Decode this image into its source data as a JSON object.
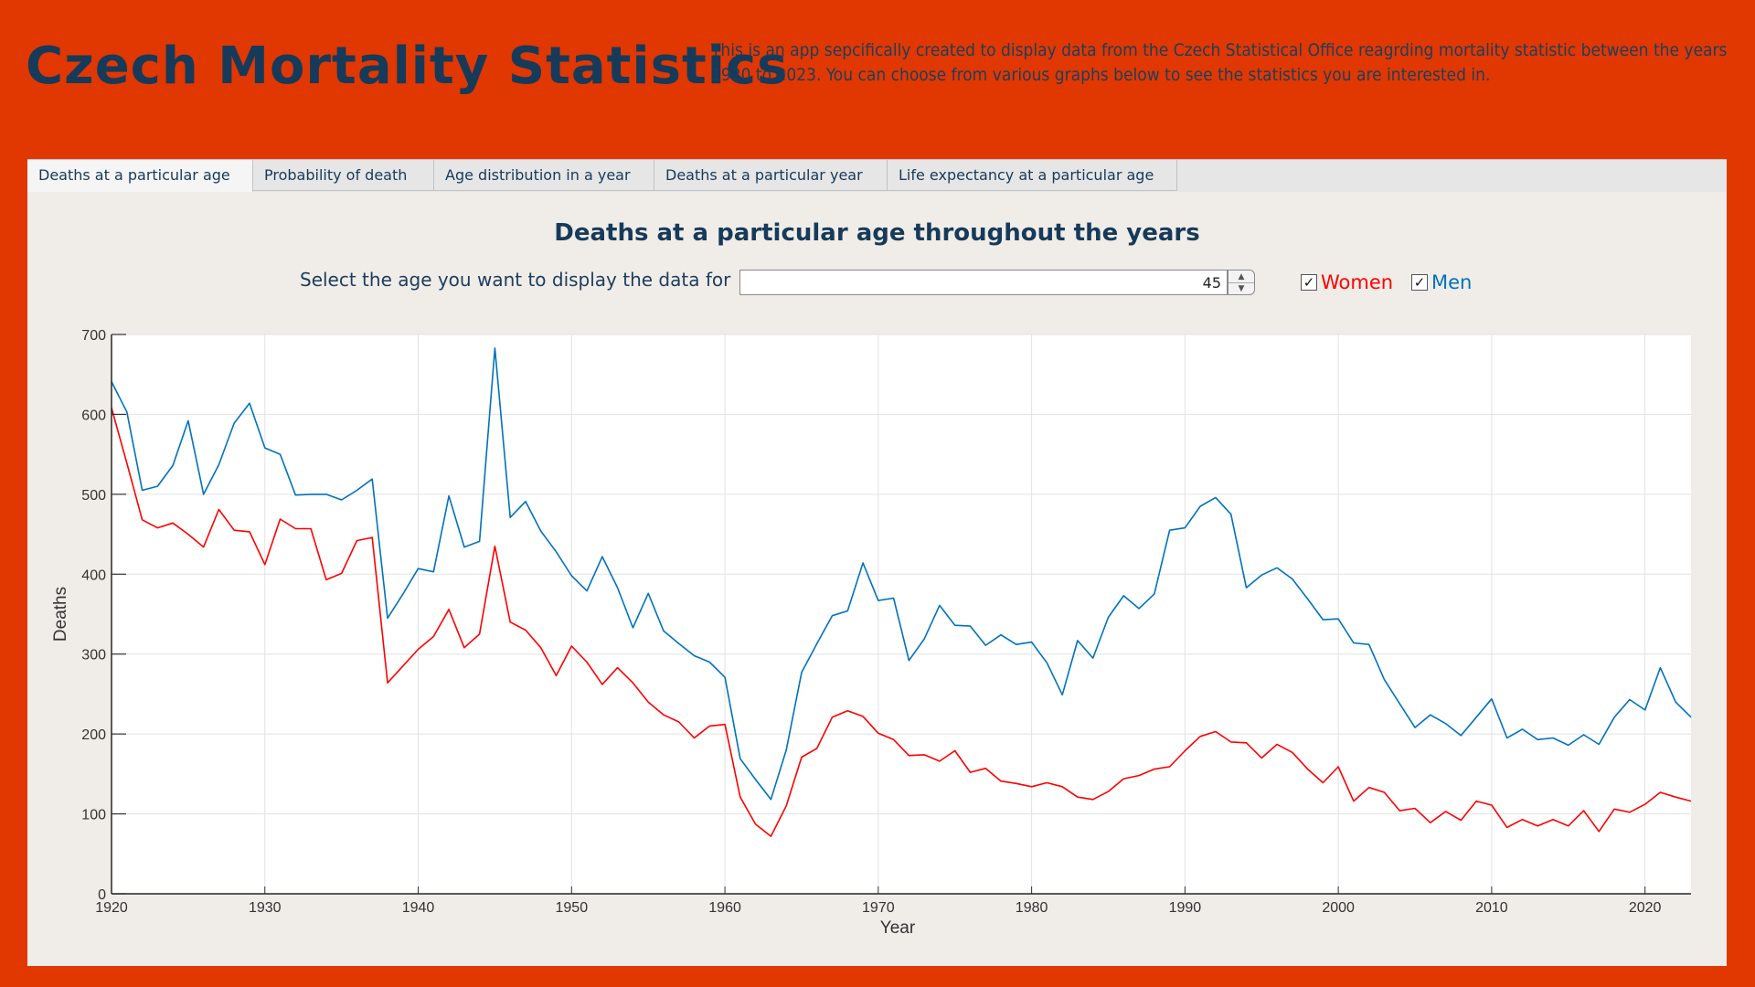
{
  "header": {
    "title": "Czech Mortality Statistics",
    "description": "This is an app sepcifically created to display data from the Czech Statistical Office reagrding mortality statistic between the years 1920 to 2023. You can choose from various graphs below to see the statistics you are interested in."
  },
  "colors": {
    "background": "#e03800",
    "title_text": "#163a5a",
    "panel": "#f0ece7",
    "women": "#ff0000",
    "men": "#0072bd"
  },
  "tabs": [
    {
      "label": "Deaths at a particular age",
      "active": true
    },
    {
      "label": "Probability of death",
      "active": false
    },
    {
      "label": "Age distribution in a year",
      "active": false
    },
    {
      "label": "Deaths at a particular year",
      "active": false
    },
    {
      "label": "Life expectancy at a particular age",
      "active": false
    }
  ],
  "controls": {
    "chart_heading": "Deaths at a particular age throughout the years",
    "age_label": "Select the age you want to display the data for",
    "age_value": "45",
    "spin_up_icon": "▲",
    "spin_down_icon": "▼",
    "check_icon": "✓",
    "women_label": "Women",
    "women_checked": true,
    "men_label": "Men",
    "men_checked": true
  },
  "chart_data": {
    "type": "line",
    "title": "Deaths at a particular age throughout the years",
    "xlabel": "Year",
    "ylabel": "Deaths",
    "xlim": [
      1920,
      2023
    ],
    "ylim": [
      0,
      700
    ],
    "xticks": [
      1920,
      1930,
      1940,
      1950,
      1960,
      1970,
      1980,
      1990,
      2000,
      2010,
      2020
    ],
    "yticks": [
      0,
      100,
      200,
      300,
      400,
      500,
      600,
      700
    ],
    "grid": true,
    "x_start": 1920,
    "series": [
      {
        "name": "Men",
        "color": "#0072bd",
        "values": [
          641,
          603,
          505,
          510,
          536,
          592,
          500,
          537,
          589,
          614,
          558,
          550,
          499,
          500,
          500,
          493,
          505,
          519,
          345,
          375,
          407,
          403,
          498,
          434,
          441,
          683,
          471,
          491,
          454,
          428,
          398,
          379,
          422,
          383,
          333,
          376,
          329,
          313,
          298,
          290,
          271,
          169,
          143,
          118,
          180,
          277,
          313,
          348,
          354,
          414,
          367,
          370,
          292,
          319,
          361,
          336,
          335,
          311,
          324,
          312,
          315,
          289,
          249,
          317,
          295,
          346,
          373,
          357,
          375,
          455,
          458,
          485,
          496,
          475,
          383,
          399,
          408,
          394,
          369,
          343,
          344,
          314,
          312,
          268,
          238,
          208,
          224,
          213,
          198,
          221,
          244,
          195,
          206,
          193,
          195,
          186,
          199,
          187,
          221,
          243,
          230,
          283,
          240,
          221
        ]
      },
      {
        "name": "Women",
        "color": "#ff0000",
        "values": [
          608,
          539,
          468,
          458,
          464,
          450,
          434,
          481,
          455,
          453,
          412,
          469,
          457,
          457,
          393,
          401,
          442,
          446,
          264,
          285,
          306,
          322,
          356,
          308,
          325,
          435,
          340,
          330,
          308,
          273,
          310,
          290,
          262,
          283,
          264,
          240,
          224,
          215,
          195,
          210,
          212,
          121,
          87,
          72,
          110,
          171,
          182,
          221,
          229,
          222,
          201,
          193,
          173,
          174,
          166,
          179,
          152,
          157,
          141,
          138,
          134,
          139,
          134,
          121,
          118,
          128,
          144,
          148,
          156,
          159,
          179,
          197,
          203,
          190,
          189,
          170,
          187,
          177,
          156,
          139,
          159,
          116,
          133,
          127,
          104,
          107,
          89,
          103,
          92,
          116,
          111,
          83,
          93,
          85,
          93,
          85,
          104,
          78,
          106,
          102,
          112,
          127,
          121,
          116
        ]
      }
    ],
    "legend": "checkbox controls above chart"
  }
}
